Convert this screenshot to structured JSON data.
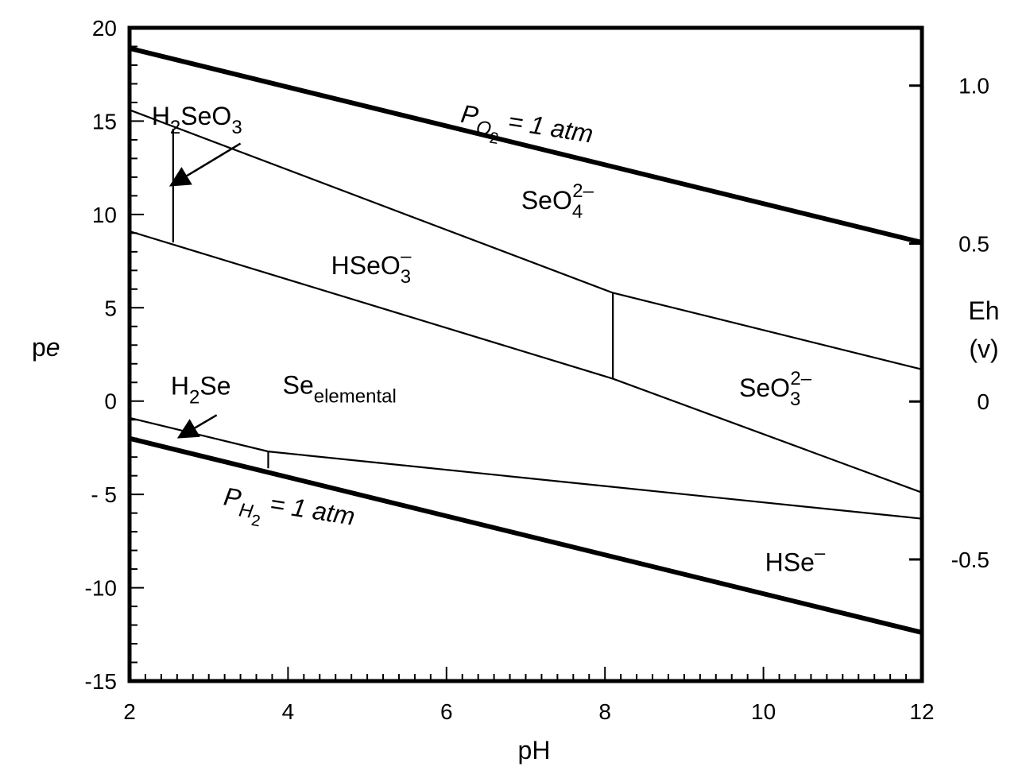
{
  "chart_data": {
    "type": "line",
    "xlabel": "pH",
    "ylabel_left": {
      "base": "p",
      "italic": "e"
    },
    "ylabel_right": [
      "Eh",
      "(v)"
    ],
    "xlim": [
      2,
      12
    ],
    "ylim": [
      -15,
      20
    ],
    "eh_lim": [
      -0.885,
      1.183
    ],
    "x_ticks": [
      2,
      4,
      6,
      8,
      10,
      12
    ],
    "x_tick_labels": [
      "2",
      "4",
      "6",
      "8",
      "10",
      "12"
    ],
    "y_ticks": [
      20,
      15,
      10,
      5,
      0,
      -5,
      -10,
      -15
    ],
    "y_tick_labels": [
      "20",
      "15",
      "10",
      "5",
      "0",
      "- 5",
      "-10",
      "-15"
    ],
    "eh_ticks": [
      1.0,
      0.5,
      0,
      -0.5
    ],
    "eh_tick_labels": [
      "1.0",
      "0.5",
      "0",
      "-0.5"
    ],
    "boundaries": [
      {
        "id": "o2-line",
        "weight": "heavy",
        "points": [
          [
            2,
            18.9
          ],
          [
            12,
            8.5
          ]
        ]
      },
      {
        "id": "h2-line",
        "weight": "heavy",
        "points": [
          [
            2,
            -2.0
          ],
          [
            12,
            -12.4
          ]
        ]
      },
      {
        "id": "se6-se4",
        "weight": "thin",
        "points": [
          [
            2,
            15.6
          ],
          [
            8.1,
            5.8
          ],
          [
            12,
            1.7
          ]
        ]
      },
      {
        "id": "se4-se0",
        "weight": "thin",
        "points": [
          [
            2,
            9.1
          ],
          [
            8.1,
            1.2
          ],
          [
            12,
            -4.9
          ]
        ]
      },
      {
        "id": "h2seo3-hseo3",
        "weight": "thin",
        "points": [
          [
            2.55,
            14.6
          ],
          [
            2.55,
            8.5
          ]
        ]
      },
      {
        "id": "hseo3-seo3",
        "weight": "thin",
        "points": [
          [
            8.1,
            5.8
          ],
          [
            8.1,
            1.2
          ]
        ]
      },
      {
        "id": "se0-selenide",
        "weight": "thin",
        "points": [
          [
            2,
            -0.9
          ],
          [
            3.75,
            -2.7
          ],
          [
            12,
            -6.3
          ]
        ]
      },
      {
        "id": "h2se-hse",
        "weight": "thin",
        "points": [
          [
            3.75,
            -2.7
          ],
          [
            3.75,
            -3.6
          ]
        ]
      }
    ],
    "regions": [
      {
        "id": "h2seo3",
        "text": [
          [
            "H",
            ""
          ],
          [
            "2",
            "sub"
          ],
          [
            "SeO",
            ""
          ],
          [
            "3",
            "sub"
          ]
        ],
        "at": [
          2.85,
          14.8
        ]
      },
      {
        "id": "seo4",
        "text": [
          [
            "SeO",
            ""
          ],
          [
            "4",
            "sub"
          ],
          [
            "2–",
            "sup"
          ]
        ],
        "at": [
          7.4,
          10.3
        ]
      },
      {
        "id": "hseo3",
        "text": [
          [
            "HSeO",
            ""
          ],
          [
            "3",
            "sub"
          ],
          [
            "–",
            "sup"
          ]
        ],
        "at": [
          5.05,
          6.8
        ]
      },
      {
        "id": "se-elemental",
        "text": [
          [
            "Se",
            ""
          ],
          [
            "elemental",
            "sub"
          ]
        ],
        "at": [
          4.65,
          0.4
        ]
      },
      {
        "id": "h2se",
        "text": [
          [
            "H",
            ""
          ],
          [
            "2",
            "sub"
          ],
          [
            "Se",
            ""
          ]
        ],
        "at": [
          2.9,
          0.35
        ]
      },
      {
        "id": "seo3",
        "text": [
          [
            "SeO",
            ""
          ],
          [
            "3",
            "sub"
          ],
          [
            "2–",
            "sup"
          ]
        ],
        "at": [
          10.15,
          0.25
        ]
      },
      {
        "id": "hse",
        "text": [
          [
            "HSe",
            ""
          ],
          [
            "–",
            "sup"
          ]
        ],
        "at": [
          10.4,
          -9.1
        ]
      }
    ],
    "line_labels": [
      {
        "id": "po2",
        "text": [
          [
            "P",
            "italic"
          ],
          [
            "O",
            "sub"
          ],
          [
            "2",
            "subsub"
          ],
          [
            " = 1 atm",
            "italic"
          ]
        ],
        "at": [
          7.0,
          14.4
        ],
        "angle": 9
      },
      {
        "id": "ph2",
        "text": [
          [
            "P",
            "italic"
          ],
          [
            "H",
            "sub"
          ],
          [
            "2",
            "subsub"
          ],
          [
            " = 1 atm",
            "italic"
          ]
        ],
        "at": [
          4.0,
          -6.1
        ],
        "angle": 9
      }
    ],
    "arrows": [
      {
        "id": "h2seo3-arrow",
        "from": [
          3.4,
          13.8
        ],
        "to": [
          2.5,
          11.5
        ]
      },
      {
        "id": "h2se-arrow",
        "from": [
          3.1,
          -0.75
        ],
        "to": [
          2.6,
          -2.0
        ]
      }
    ]
  }
}
